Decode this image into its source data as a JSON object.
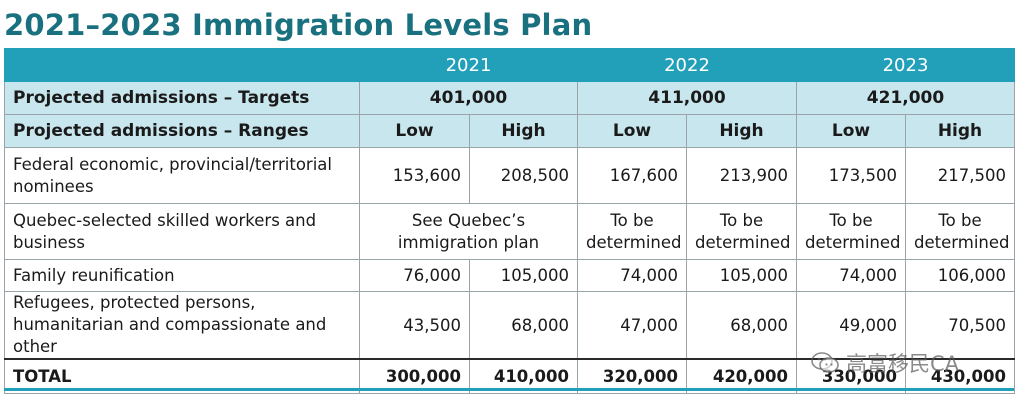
{
  "title": "2021–2023 Immigration Levels Plan",
  "years": [
    "2021",
    "2022",
    "2023"
  ],
  "targets": {
    "label": "Projected admissions – Targets",
    "values": [
      "401,000",
      "411,000",
      "421,000"
    ]
  },
  "ranges": {
    "label": "Projected admissions – Ranges",
    "low": "Low",
    "high": "High"
  },
  "rows": [
    {
      "label": "Federal economic, provincial/territorial nominees",
      "values": [
        "153,600",
        "208,500",
        "167,600",
        "213,900",
        "173,500",
        "217,500"
      ]
    },
    {
      "label": "Quebec-selected skilled workers and business",
      "merged_2021": "See Quebec’s immigration plan",
      "values": [
        "To be determined",
        "To be determined",
        "To be determined",
        "To be determined"
      ]
    },
    {
      "label": "Family reunification",
      "values": [
        "76,000",
        "105,000",
        "74,000",
        "105,000",
        "74,000",
        "106,000"
      ]
    },
    {
      "label": "Refugees, protected persons, humanitarian and compassionate and other",
      "values": [
        "43,500",
        "68,000",
        "47,000",
        "68,000",
        "49,000",
        "70,500"
      ]
    }
  ],
  "total": {
    "label": "TOTAL",
    "values": [
      "300,000",
      "410,000",
      "320,000",
      "420,000",
      "330,000",
      "430,000"
    ]
  },
  "watermark": {
    "text": "高富移民CA",
    "icon": "wechat-icon"
  }
}
